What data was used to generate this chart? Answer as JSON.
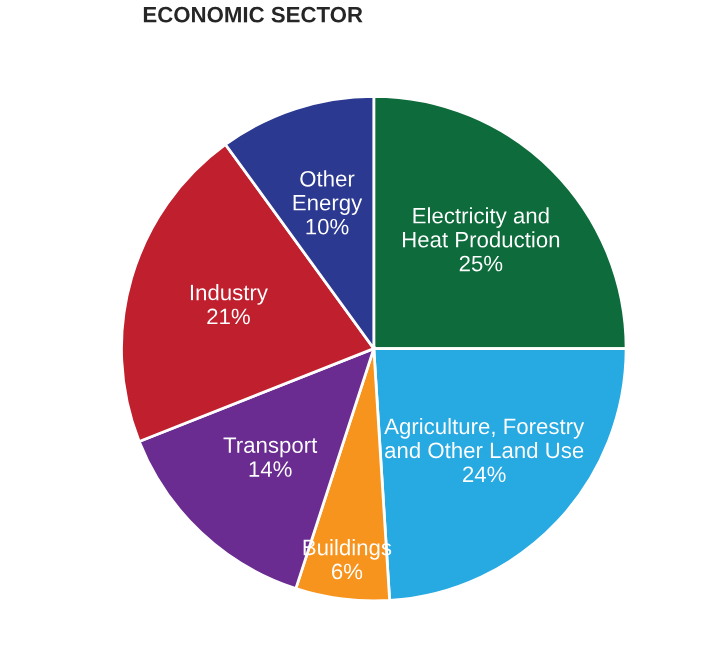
{
  "chart_data": {
    "type": "pie",
    "title": "ECONOMIC SECTOR",
    "categories": [
      "Electricity and\nHeat Production",
      "Agriculture, Forestry\nand Other Land Use",
      "Buildings",
      "Transport",
      "Industry",
      "Other\nEnergy"
    ],
    "values": [
      25,
      24,
      6,
      14,
      21,
      10
    ],
    "colors": [
      "#0e6b3b",
      "#27a9e1",
      "#f7941d",
      "#6a2c91",
      "#c0202e",
      "#2b3990"
    ],
    "value_labels": [
      "25%",
      "24%",
      "6%",
      "14%",
      "21%",
      "10%"
    ]
  }
}
